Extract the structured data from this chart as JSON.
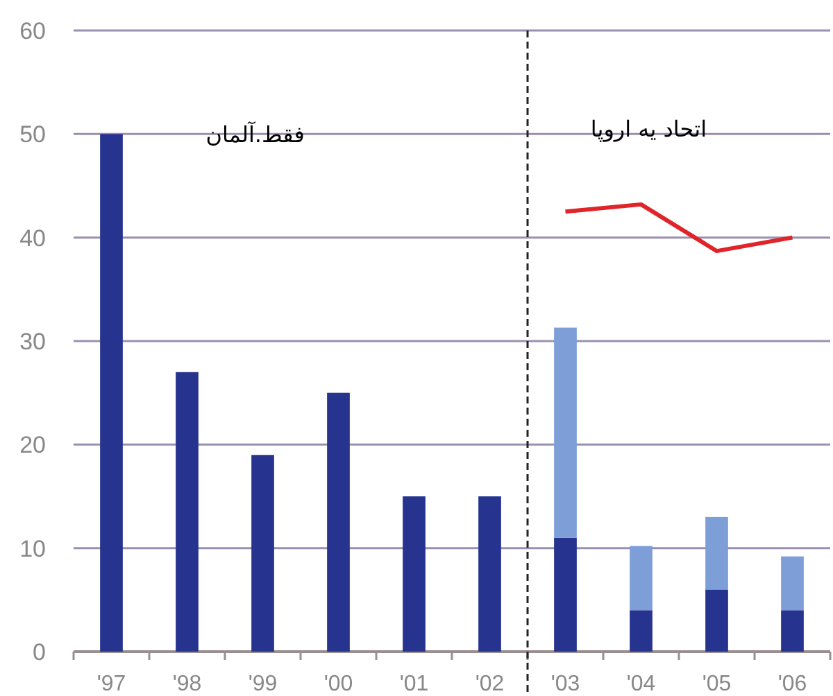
{
  "chart_data": {
    "type": "bar",
    "stacked": true,
    "grid": "y",
    "categories": [
      "'97",
      "'98",
      "'99",
      "'00",
      "'01",
      "'02",
      "'03",
      "'04",
      "'05",
      "'06"
    ],
    "series": [
      {
        "color": "#26338f",
        "values": [
          50,
          27,
          19,
          25,
          15,
          15,
          11,
          4,
          6,
          4
        ]
      },
      {
        "color": "#7e9ed8",
        "values": [
          null,
          null,
          null,
          null,
          null,
          null,
          20.3,
          6.2,
          7,
          5.2
        ]
      },
      {
        "type": "line",
        "color": "#e0252a",
        "values": [
          null,
          null,
          null,
          null,
          null,
          null,
          42.5,
          43.2,
          38.7,
          40
        ]
      }
    ],
    "ylim": [
      0,
      60
    ],
    "yticks": [
      0,
      10,
      20,
      30,
      40,
      50,
      60
    ],
    "ref_lines": [
      {
        "axis": "x",
        "value": "'03",
        "color": "#222222",
        "line_style": "dashed"
      }
    ],
    "annotations": [
      "فقط.آلمان",
      "اتحاد یه اروپا"
    ]
  }
}
